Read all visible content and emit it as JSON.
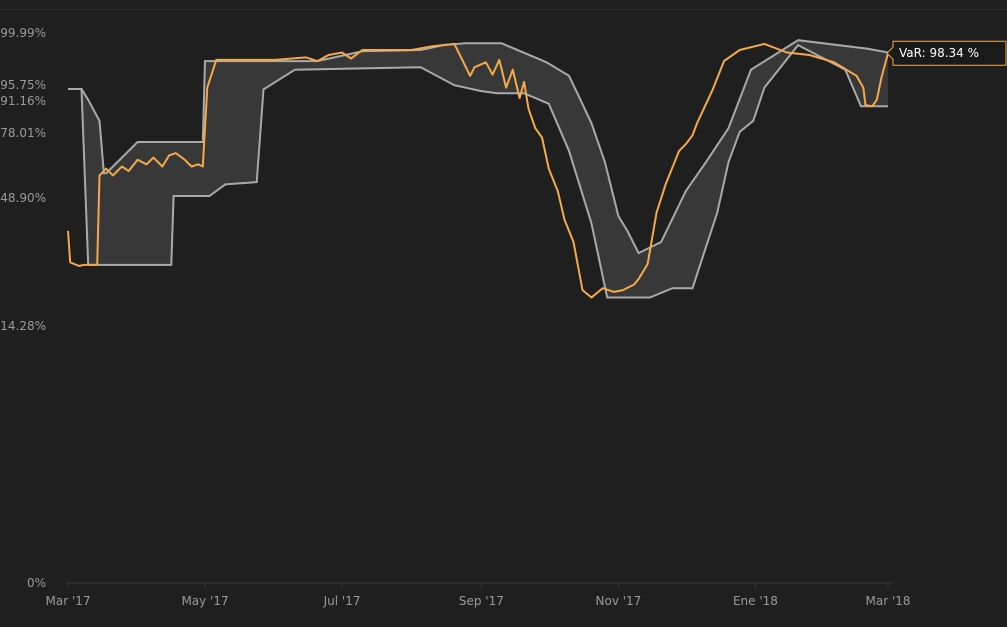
{
  "chart_data": {
    "type": "area",
    "y_ticks": [
      {
        "label": "99.99%",
        "value": 99.99
      },
      {
        "label": "95.75%",
        "value": 95.75
      },
      {
        "label": "91.16%",
        "value": 91.16
      },
      {
        "label": "78.01%",
        "value": 78.01
      },
      {
        "label": "48.90%",
        "value": 48.9
      },
      {
        "label": "14.28%",
        "value": 14.28
      },
      {
        "label": "0%",
        "value": 0
      }
    ],
    "x_ticks": [
      {
        "label": "Mar '17",
        "date": "2017-03-01"
      },
      {
        "label": "May '17",
        "date": "2017-05-01"
      },
      {
        "label": "Jul '17",
        "date": "2017-07-01"
      },
      {
        "label": "Sep '17",
        "date": "2017-09-01"
      },
      {
        "label": "Nov '17",
        "date": "2017-11-01"
      },
      {
        "label": "Ene '18",
        "date": "2018-01-01"
      },
      {
        "label": "Mar '18",
        "date": "2018-03-01"
      }
    ],
    "band": {
      "upper": [
        [
          "2017-03-01",
          94.6
        ],
        [
          "2017-03-07",
          94.6
        ],
        [
          "2017-03-10",
          91.5
        ],
        [
          "2017-03-15",
          83.0
        ],
        [
          "2017-03-17",
          60.0
        ],
        [
          "2017-03-18",
          60.0
        ],
        [
          "2017-04-01",
          74.0
        ],
        [
          "2017-04-30",
          74.0
        ],
        [
          "2017-05-01",
          97.7
        ],
        [
          "2017-06-20",
          97.7
        ],
        [
          "2017-07-10",
          98.5
        ],
        [
          "2017-08-05",
          98.6
        ],
        [
          "2017-08-15",
          99.0
        ],
        [
          "2017-08-25",
          99.15
        ],
        [
          "2017-09-10",
          99.15
        ],
        [
          "2017-09-30",
          97.6
        ],
        [
          "2017-10-10",
          96.5
        ],
        [
          "2017-10-14",
          93.0
        ],
        [
          "2017-10-20",
          82.0
        ],
        [
          "2017-10-26",
          65.0
        ],
        [
          "2017-11-01",
          44.0
        ],
        [
          "2017-11-05",
          40.0
        ],
        [
          "2017-11-10",
          34.0
        ],
        [
          "2017-11-20",
          37.0
        ],
        [
          "2017-12-01",
          52.0
        ],
        [
          "2017-12-10",
          65.0
        ],
        [
          "2017-12-20",
          80.0
        ],
        [
          "2017-12-30",
          97.0
        ],
        [
          "2018-01-20",
          99.4
        ],
        [
          "2018-02-20",
          98.7
        ],
        [
          "2018-03-01",
          98.4
        ]
      ],
      "lower": [
        [
          "2017-03-01",
          94.6
        ],
        [
          "2017-03-07",
          94.6
        ],
        [
          "2017-03-10",
          30.8
        ],
        [
          "2017-04-16",
          30.8
        ],
        [
          "2017-04-17",
          49.8
        ],
        [
          "2017-05-03",
          49.8
        ],
        [
          "2017-05-10",
          55.0
        ],
        [
          "2017-05-24",
          56.0
        ],
        [
          "2017-05-27",
          94.5
        ],
        [
          "2017-06-10",
          97.0
        ],
        [
          "2017-07-10",
          97.1
        ],
        [
          "2017-08-05",
          97.2
        ],
        [
          "2017-08-20",
          95.7
        ],
        [
          "2017-09-01",
          94.0
        ],
        [
          "2017-09-08",
          93.4
        ],
        [
          "2017-09-20",
          93.4
        ],
        [
          "2017-10-01",
          90.0
        ],
        [
          "2017-10-10",
          70.0
        ],
        [
          "2017-10-20",
          42.0
        ],
        [
          "2017-10-27",
          22.0
        ],
        [
          "2017-11-15",
          22.0
        ],
        [
          "2017-11-25",
          24.5
        ],
        [
          "2017-12-04",
          24.5
        ],
        [
          "2017-12-15",
          45.0
        ],
        [
          "2017-12-20",
          65.0
        ],
        [
          "2017-12-25",
          78.5
        ],
        [
          "2017-12-31",
          83.0
        ],
        [
          "2018-01-05",
          95.0
        ],
        [
          "2018-01-20",
          99.0
        ],
        [
          "2018-02-10",
          97.0
        ],
        [
          "2018-02-17",
          89.0
        ],
        [
          "2018-03-01",
          89.0
        ]
      ]
    },
    "series": [
      {
        "name": "VaR",
        "color": "#f5a94a",
        "points": [
          [
            "2017-03-01",
            40.0
          ],
          [
            "2017-03-02",
            31.5
          ],
          [
            "2017-03-04",
            31.0
          ],
          [
            "2017-03-06",
            30.5
          ],
          [
            "2017-03-08",
            30.8
          ],
          [
            "2017-03-14",
            30.8
          ],
          [
            "2017-03-15",
            59.0
          ],
          [
            "2017-03-18",
            62.0
          ],
          [
            "2017-03-21",
            59.0
          ],
          [
            "2017-03-25",
            63.0
          ],
          [
            "2017-03-28",
            61.0
          ],
          [
            "2017-04-01",
            66.0
          ],
          [
            "2017-04-05",
            64.0
          ],
          [
            "2017-04-08",
            67.0
          ],
          [
            "2017-04-12",
            63.0
          ],
          [
            "2017-04-15",
            68.0
          ],
          [
            "2017-04-18",
            69.0
          ],
          [
            "2017-04-22",
            66.0
          ],
          [
            "2017-04-25",
            63.0
          ],
          [
            "2017-04-28",
            64.0
          ],
          [
            "2017-04-30",
            63.0
          ],
          [
            "2017-05-02",
            95.0
          ],
          [
            "2017-05-06",
            97.8
          ],
          [
            "2017-05-10",
            97.8
          ],
          [
            "2017-06-01",
            97.8
          ],
          [
            "2017-06-15",
            98.0
          ],
          [
            "2017-06-20",
            97.7
          ],
          [
            "2017-06-25",
            98.2
          ],
          [
            "2017-07-01",
            98.4
          ],
          [
            "2017-07-05",
            97.9
          ],
          [
            "2017-07-10",
            98.6
          ],
          [
            "2017-08-01",
            98.6
          ],
          [
            "2017-08-10",
            98.9
          ],
          [
            "2017-08-20",
            99.1
          ],
          [
            "2017-08-27",
            96.5
          ],
          [
            "2017-08-29",
            97.2
          ],
          [
            "2017-09-03",
            97.6
          ],
          [
            "2017-09-06",
            96.6
          ],
          [
            "2017-09-09",
            97.8
          ],
          [
            "2017-09-12",
            95.0
          ],
          [
            "2017-09-15",
            97.0
          ],
          [
            "2017-09-18",
            92.0
          ],
          [
            "2017-09-20",
            96.0
          ],
          [
            "2017-09-22",
            88.0
          ],
          [
            "2017-09-25",
            80.0
          ],
          [
            "2017-09-28",
            76.0
          ],
          [
            "2017-10-01",
            62.0
          ],
          [
            "2017-10-05",
            52.0
          ],
          [
            "2017-10-08",
            43.0
          ],
          [
            "2017-10-12",
            37.0
          ],
          [
            "2017-10-16",
            24.0
          ],
          [
            "2017-10-20",
            22.0
          ],
          [
            "2017-10-25",
            24.5
          ],
          [
            "2017-10-30",
            23.5
          ],
          [
            "2017-11-03",
            24.0
          ],
          [
            "2017-11-08",
            25.5
          ],
          [
            "2017-11-10",
            27.0
          ],
          [
            "2017-11-14",
            31.0
          ],
          [
            "2017-11-18",
            45.0
          ],
          [
            "2017-11-22",
            55.0
          ],
          [
            "2017-11-28",
            70.0
          ],
          [
            "2017-12-01",
            73.0
          ],
          [
            "2017-12-04",
            77.0
          ],
          [
            "2017-12-06",
            82.0
          ],
          [
            "2017-12-09",
            88.0
          ],
          [
            "2017-12-13",
            94.5
          ],
          [
            "2017-12-18",
            97.7
          ],
          [
            "2017-12-25",
            98.6
          ],
          [
            "2018-01-05",
            99.1
          ],
          [
            "2018-01-15",
            98.4
          ],
          [
            "2018-01-25",
            98.2
          ],
          [
            "2018-02-05",
            97.6
          ],
          [
            "2018-02-15",
            96.5
          ],
          [
            "2018-02-18",
            95.0
          ],
          [
            "2018-02-19",
            89.5
          ],
          [
            "2018-02-22",
            89.0
          ],
          [
            "2018-02-24",
            91.5
          ],
          [
            "2018-02-26",
            96.3
          ],
          [
            "2018-03-01",
            98.34
          ]
        ]
      }
    ],
    "tooltip": "VaR: 98.34 %",
    "colors": {
      "background": "#1f1f1f",
      "band_fill": "#383838",
      "band_line": "#a9a9a9",
      "series": "#f5a94a",
      "tooltip_bg": "#1a1a1a",
      "axis_label": "#9a9a9a",
      "axis_line": "#3a3a3a"
    }
  }
}
